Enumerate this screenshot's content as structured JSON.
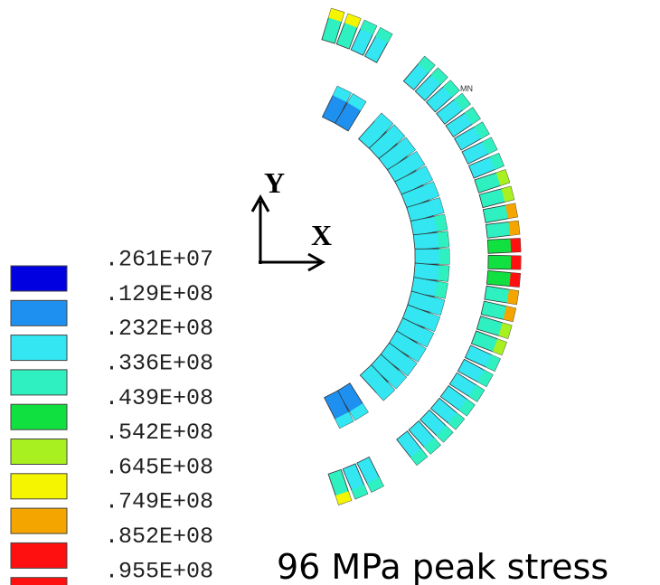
{
  "legend": {
    "entries": [
      {
        "label": ".261E+07",
        "color": "#0000e0"
      },
      {
        "label": ".129E+08",
        "color": "#1e90f0"
      },
      {
        "label": ".232E+08",
        "color": "#33e6f2"
      },
      {
        "label": ".336E+08",
        "color": "#2ff0c0"
      },
      {
        "label": ".439E+08",
        "color": "#10e040"
      },
      {
        "label": ".542E+08",
        "color": "#a8f020"
      },
      {
        "label": ".645E+08",
        "color": "#f5f500"
      },
      {
        "label": ".749E+08",
        "color": "#f5a500"
      },
      {
        "label": ".852E+08",
        "color": "#ff1010"
      },
      {
        "label": ".955E+08",
        "color": null
      }
    ]
  },
  "axes": {
    "y_label": "Y",
    "x_label": "X"
  },
  "markers": {
    "min": "MN"
  },
  "caption": "96 MPa peak stress"
}
